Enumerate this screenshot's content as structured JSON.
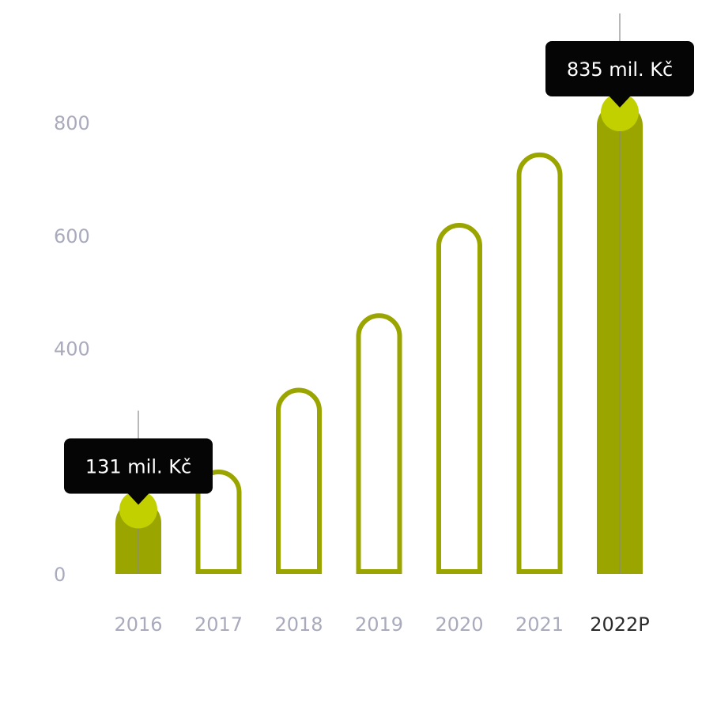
{
  "chart_data": {
    "type": "bar",
    "categories": [
      "2016",
      "2017",
      "2018",
      "2019",
      "2020",
      "2021",
      "2022P"
    ],
    "values": [
      131,
      185,
      330,
      462,
      622,
      747,
      835
    ],
    "filled": [
      true,
      false,
      false,
      false,
      false,
      false,
      true
    ],
    "active_category": "2022P",
    "ylim": [
      0,
      800
    ],
    "yticks": [
      0,
      400,
      600,
      800
    ],
    "grid": false,
    "annotations": [
      {
        "category": "2016",
        "text": "131 mil. Kč"
      },
      {
        "category": "2022P",
        "text": "835 mil. Kč"
      }
    ]
  },
  "colors": {
    "bar": "#9aa500",
    "marker": "#c2d000",
    "tick": "#a9abbd",
    "active_tick": "#2b2b2b",
    "tooltip_bg": "#050505",
    "tooltip_text": "#ffffff",
    "guide_line": "#8a8a8a"
  }
}
